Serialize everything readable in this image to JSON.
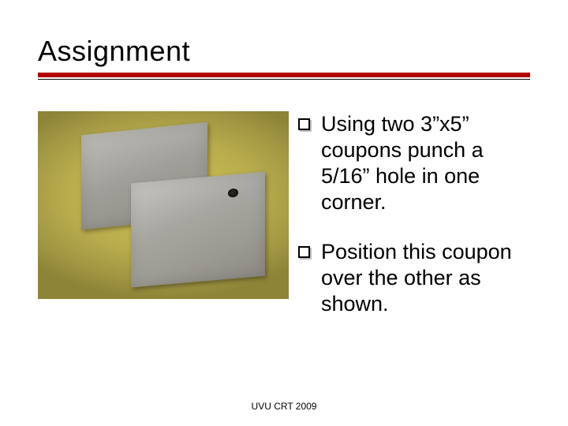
{
  "title": "Assignment",
  "rule": {
    "thick_color": "#b20000",
    "thin_color": "#000000"
  },
  "bullets": [
    "Using two 3”x5” coupons punch a 5/16” hole in one corner.",
    "Position this coupon over the other as shown."
  ],
  "footer": "UVU CRT 2009",
  "photo": {
    "bg_colors": [
      "#cfc156",
      "#a39843"
    ],
    "plate_color": "#a7a6a0",
    "hole_color": "#161511"
  }
}
